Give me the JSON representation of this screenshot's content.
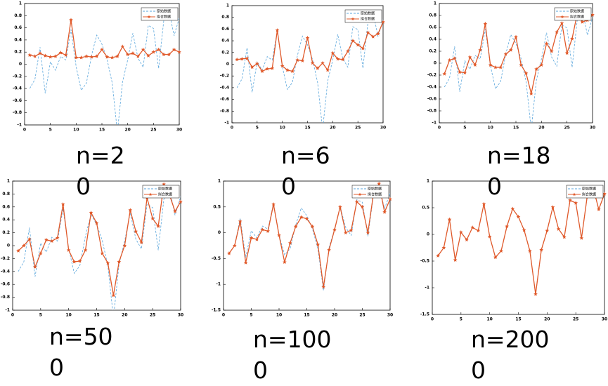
{
  "chart_data": [
    {
      "type": "line",
      "caption": "n=20",
      "x": [
        1,
        2,
        3,
        4,
        5,
        6,
        7,
        8,
        9,
        10,
        11,
        12,
        13,
        14,
        15,
        16,
        17,
        18,
        19,
        20,
        21,
        22,
        23,
        24,
        25,
        26,
        27,
        28,
        29,
        30
      ],
      "xlim": [
        0,
        30
      ],
      "xticks": [
        0,
        5,
        10,
        15,
        20,
        25,
        30
      ],
      "ylim": [
        -1,
        1
      ],
      "yticks": [
        -1,
        -0.8,
        -0.6,
        -0.4,
        -0.2,
        0,
        0.2,
        0.4,
        0.6,
        0.8,
        1
      ],
      "series": [
        {
          "name": "原始数据",
          "color": "#5aa6dc",
          "linestyle": "dashed",
          "values": [
            -0.4,
            -0.25,
            0.28,
            -0.48,
            0.04,
            -0.1,
            0.13,
            0.07,
            0.57,
            -0.04,
            -0.43,
            -0.31,
            0.15,
            0.48,
            0.33,
            0.08,
            -0.31,
            -1.12,
            -0.29,
            0.07,
            0.51,
            0.1,
            -0.05,
            0.64,
            0.59,
            -0.07,
            0.72,
            0.89,
            0.47,
            0.76
          ]
        },
        {
          "name": "拟合数据",
          "color": "#e0592a",
          "linestyle": "solid",
          "marker": "star",
          "values": [
            0.15,
            0.13,
            0.18,
            0.14,
            0.12,
            0.13,
            0.19,
            0.15,
            0.73,
            0.11,
            0.11,
            0.13,
            0.12,
            0.13,
            0.24,
            0.12,
            0.11,
            0.13,
            0.29,
            0.16,
            0.18,
            0.13,
            0.24,
            0.14,
            0.2,
            0.24,
            0.16,
            0.16,
            0.24,
            0.2
          ]
        }
      ]
    },
    {
      "type": "line",
      "caption": "n=60",
      "x": [
        1,
        2,
        3,
        4,
        5,
        6,
        7,
        8,
        9,
        10,
        11,
        12,
        13,
        14,
        15,
        16,
        17,
        18,
        19,
        20,
        21,
        22,
        23,
        24,
        25,
        26,
        27,
        28,
        29,
        30
      ],
      "xlim": [
        0,
        30
      ],
      "xticks": [
        0,
        5,
        10,
        15,
        20,
        25,
        30
      ],
      "ylim": [
        -1,
        1
      ],
      "yticks": [
        -1,
        -0.8,
        -0.6,
        -0.4,
        -0.2,
        0,
        0.2,
        0.4,
        0.6,
        0.8,
        1
      ],
      "series": [
        {
          "name": "原始数据",
          "color": "#5aa6dc",
          "linestyle": "dashed",
          "values": [
            -0.4,
            -0.25,
            0.28,
            -0.48,
            0.04,
            -0.1,
            0.13,
            0.07,
            0.57,
            -0.04,
            -0.43,
            -0.31,
            0.15,
            0.48,
            0.33,
            0.08,
            -0.31,
            -1.12,
            -0.29,
            0.07,
            0.51,
            0.1,
            -0.05,
            0.64,
            0.59,
            -0.07,
            0.72,
            0.89,
            0.47,
            0.76
          ]
        },
        {
          "name": "拟合数据",
          "color": "#e0592a",
          "linestyle": "solid",
          "marker": "star",
          "values": [
            0.08,
            0.09,
            0.1,
            -0.05,
            0.01,
            -0.12,
            -0.08,
            -0.07,
            0.58,
            -0.03,
            -0.1,
            -0.12,
            0.07,
            0.06,
            0.45,
            0.02,
            -0.07,
            0.02,
            -0.1,
            0.19,
            0.09,
            0.08,
            0.22,
            0.4,
            0.33,
            0.27,
            0.54,
            0.47,
            0.52,
            0.72
          ]
        }
      ]
    },
    {
      "type": "line",
      "caption": "n=180",
      "x": [
        1,
        2,
        3,
        4,
        5,
        6,
        7,
        8,
        9,
        10,
        11,
        12,
        13,
        14,
        15,
        16,
        17,
        18,
        19,
        20,
        21,
        22,
        23,
        24,
        25,
        26,
        27,
        28,
        29,
        30
      ],
      "xlim": [
        0,
        30
      ],
      "xticks": [
        0,
        5,
        10,
        15,
        20,
        25,
        30
      ],
      "ylim": [
        -1,
        1
      ],
      "yticks": [
        -1,
        -0.8,
        -0.6,
        -0.4,
        -0.2,
        0,
        0.2,
        0.4,
        0.6,
        0.8,
        1
      ],
      "series": [
        {
          "name": "原始数据",
          "color": "#5aa6dc",
          "linestyle": "dashed",
          "values": [
            -0.4,
            -0.25,
            0.28,
            -0.48,
            0.04,
            -0.1,
            0.13,
            0.07,
            0.57,
            -0.04,
            -0.43,
            -0.31,
            0.15,
            0.48,
            0.33,
            0.08,
            -0.31,
            -1.12,
            -0.29,
            0.07,
            0.51,
            0.1,
            -0.05,
            0.64,
            0.59,
            -0.07,
            0.72,
            0.89,
            0.47,
            0.76
          ]
        },
        {
          "name": "拟合数据",
          "color": "#e0592a",
          "linestyle": "solid",
          "marker": "star",
          "values": [
            -0.18,
            0.05,
            0.08,
            -0.15,
            -0.16,
            0.1,
            -0.03,
            0.22,
            0.66,
            -0.03,
            -0.07,
            -0.07,
            0.15,
            0.22,
            0.44,
            -0.03,
            -0.17,
            -0.51,
            -0.1,
            -0.03,
            0.33,
            0.2,
            0.52,
            0.67,
            0.17,
            0.41,
            0.83,
            0.69,
            0.72,
            0.81
          ]
        }
      ]
    },
    {
      "type": "line",
      "caption": "n=500",
      "x": [
        1,
        2,
        3,
        4,
        5,
        6,
        7,
        8,
        9,
        10,
        11,
        12,
        13,
        14,
        15,
        16,
        17,
        18,
        19,
        20,
        21,
        22,
        23,
        24,
        25,
        26,
        27,
        28,
        29,
        30
      ],
      "xlim": [
        0,
        30
      ],
      "xticks": [
        0,
        5,
        10,
        15,
        20,
        25,
        30
      ],
      "ylim": [
        -1,
        1
      ],
      "yticks": [
        -1,
        -0.8,
        -0.6,
        -0.4,
        -0.2,
        0,
        0.2,
        0.4,
        0.6,
        0.8,
        1
      ],
      "series": [
        {
          "name": "原始数据",
          "color": "#5aa6dc",
          "linestyle": "dashed",
          "values": [
            -0.4,
            -0.25,
            0.28,
            -0.48,
            0.04,
            -0.1,
            0.13,
            0.07,
            0.57,
            -0.04,
            -0.43,
            -0.31,
            0.15,
            0.48,
            0.33,
            0.08,
            -0.31,
            -1.12,
            -0.29,
            0.07,
            0.51,
            0.1,
            -0.05,
            0.64,
            0.59,
            -0.07,
            0.72,
            0.89,
            0.47,
            0.76
          ]
        },
        {
          "name": "拟合数据",
          "color": "#e0592a",
          "linestyle": "solid",
          "marker": "star",
          "values": [
            -0.08,
            0,
            0.1,
            -0.33,
            -0.12,
            0.09,
            0.07,
            0.12,
            0.64,
            -0.07,
            -0.25,
            -0.24,
            -0.07,
            0.51,
            0.35,
            -0.12,
            -0.27,
            -0.77,
            -0.25,
            0,
            0.55,
            0.22,
            0.05,
            0.74,
            0.42,
            0.3,
            0.95,
            0.79,
            0.53,
            0.68
          ]
        }
      ]
    },
    {
      "type": "line",
      "caption": "n=1000",
      "x": [
        1,
        2,
        3,
        4,
        5,
        6,
        7,
        8,
        9,
        10,
        11,
        12,
        13,
        14,
        15,
        16,
        17,
        18,
        19,
        20,
        21,
        22,
        23,
        24,
        25,
        26,
        27,
        28,
        29,
        30
      ],
      "xlim": [
        0,
        30
      ],
      "xticks": [
        0,
        5,
        10,
        15,
        20,
        25,
        30
      ],
      "ylim": [
        -1.5,
        1
      ],
      "yticks": [
        -1.5,
        -1,
        -0.5,
        0,
        0.5,
        1
      ],
      "series": [
        {
          "name": "原始数据",
          "color": "#5aa6dc",
          "linestyle": "dashed",
          "values": [
            -0.4,
            -0.25,
            0.28,
            -0.48,
            0.04,
            -0.1,
            0.13,
            0.07,
            0.57,
            -0.04,
            -0.43,
            -0.31,
            0.15,
            0.48,
            0.33,
            0.08,
            -0.31,
            -1.12,
            -0.29,
            0.07,
            0.51,
            0.1,
            -0.05,
            0.64,
            0.59,
            -0.07,
            0.72,
            0.89,
            0.47,
            0.76
          ]
        },
        {
          "name": "拟合数据",
          "color": "#e0592a",
          "linestyle": "solid",
          "marker": "star",
          "values": [
            -0.4,
            -0.25,
            0.22,
            -0.58,
            -0.1,
            -0.13,
            0.06,
            0.03,
            0.55,
            -0.05,
            -0.57,
            -0.2,
            0.12,
            0.3,
            0.27,
            0.12,
            -0.23,
            -1.05,
            -0.33,
            0.06,
            0.5,
            0,
            0.05,
            0.6,
            0.5,
            0,
            0.75,
            0.95,
            0.4,
            0.65
          ]
        }
      ]
    },
    {
      "type": "line",
      "caption": "n=2000",
      "x": [
        1,
        2,
        3,
        4,
        5,
        6,
        7,
        8,
        9,
        10,
        11,
        12,
        13,
        14,
        15,
        16,
        17,
        18,
        19,
        20,
        21,
        22,
        23,
        24,
        25,
        26,
        27,
        28,
        29,
        30
      ],
      "xlim": [
        0,
        30
      ],
      "xticks": [
        0,
        5,
        10,
        15,
        20,
        25,
        30
      ],
      "ylim": [
        -1.5,
        1
      ],
      "yticks": [
        -1.5,
        -1,
        -0.5,
        0,
        0.5,
        1
      ],
      "series": [
        {
          "name": "原始数据",
          "color": "#5aa6dc",
          "linestyle": "dashed",
          "values": [
            -0.4,
            -0.25,
            0.28,
            -0.48,
            0.04,
            -0.1,
            0.13,
            0.07,
            0.57,
            -0.04,
            -0.43,
            -0.31,
            0.15,
            0.48,
            0.33,
            0.08,
            -0.31,
            -1.12,
            -0.29,
            0.07,
            0.51,
            0.1,
            -0.05,
            0.64,
            0.59,
            -0.07,
            0.72,
            0.89,
            0.47,
            0.76
          ]
        },
        {
          "name": "拟合数据",
          "color": "#e0592a",
          "linestyle": "solid",
          "marker": "star",
          "values": [
            -0.4,
            -0.25,
            0.28,
            -0.48,
            0.04,
            -0.1,
            0.13,
            0.07,
            0.57,
            -0.04,
            -0.43,
            -0.31,
            0.15,
            0.48,
            0.33,
            0.08,
            -0.31,
            -1.12,
            -0.29,
            0.07,
            0.51,
            0.1,
            -0.05,
            0.64,
            0.59,
            -0.07,
            0.72,
            0.89,
            0.47,
            0.76
          ]
        }
      ]
    }
  ]
}
